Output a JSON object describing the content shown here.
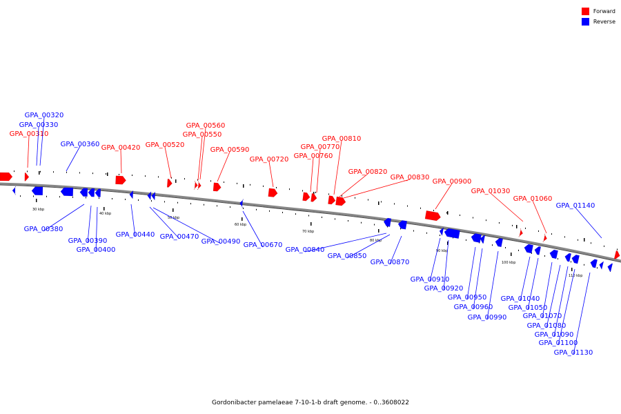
{
  "legend": {
    "forward_label": "Forward",
    "reverse_label": "Reverse",
    "forward_color": "#ff0000",
    "reverse_color": "#0000ff"
  },
  "caption": "Gordonibacter pamelaeae 7-10-1-b draft genome. - 0..3608022",
  "scale_labels": [
    "30 kbp",
    "40 kbp",
    "50 kbp",
    "60 kbp",
    "70 kbp",
    "80 kbp",
    "90 kbp",
    "100 kbp",
    "110 kbp"
  ],
  "genes_forward": [
    "GPA_00310",
    "GPA_00420",
    "GPA_00520",
    "GPA_00550",
    "GPA_00560",
    "GPA_00590",
    "GPA_00720",
    "GPA_00760",
    "GPA_00770",
    "GPA_00810",
    "GPA_00820",
    "GPA_00830",
    "GPA_00900",
    "GPA_01030",
    "GPA_01060"
  ],
  "genes_reverse": [
    "GPA_00320",
    "GPA_00330",
    "GPA_00360",
    "GPA_00380",
    "GPA_00390",
    "GPA_00400",
    "GPA_00440",
    "GPA_00470",
    "GPA_00490",
    "GPA_00670",
    "GPA_00840",
    "GPA_00850",
    "GPA_00870",
    "GPA_00910",
    "GPA_00920",
    "GPA_00950",
    "GPA_00960",
    "GPA_00990",
    "GPA_01040",
    "GPA_01050",
    "GPA_01070",
    "GPA_01080",
    "GPA_01090",
    "GPA_01100",
    "GPA_01130",
    "GPA_01140"
  ]
}
